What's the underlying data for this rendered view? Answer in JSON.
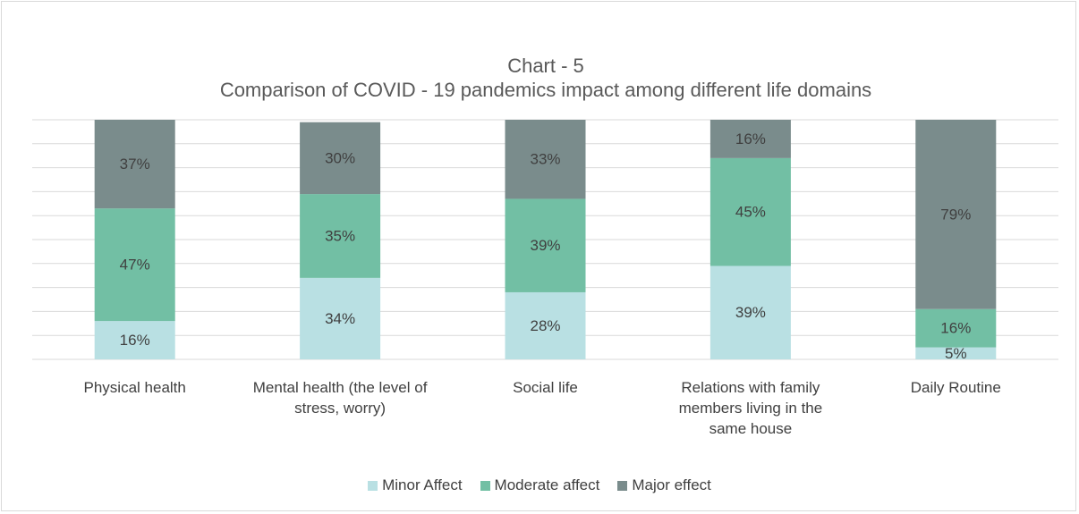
{
  "chart_data": {
    "type": "stacked_bar",
    "title": "Chart - 5",
    "subtitle": "Comparison of COVID - 19 pandemics impact among different life domains",
    "categories": [
      "Physical health",
      "Mental health (the level of stress, worry)",
      "Social life",
      "Relations with family members living in the same house",
      "Daily Routine"
    ],
    "series": [
      {
        "name": "Minor Affect",
        "color": "#b9e0e3",
        "values": [
          16,
          34,
          28,
          39,
          5
        ],
        "value_labels": [
          "16%",
          "34%",
          "28%",
          "39%",
          "5%"
        ]
      },
      {
        "name": "Moderate affect",
        "color": "#72bfa4",
        "values": [
          47,
          35,
          39,
          45,
          16
        ],
        "value_labels": [
          "47%",
          "35%",
          "39%",
          "45%",
          "16%"
        ]
      },
      {
        "name": "Major effect",
        "color": "#7a8c8c",
        "values": [
          37,
          30,
          33,
          16,
          79
        ],
        "value_labels": [
          "37%",
          "30%",
          "33%",
          "16%",
          "79%"
        ]
      }
    ],
    "ylim": [
      0,
      100
    ],
    "yticks": [
      0,
      10,
      20,
      30,
      40,
      50,
      60,
      70,
      80,
      90,
      100
    ],
    "grid": true
  }
}
